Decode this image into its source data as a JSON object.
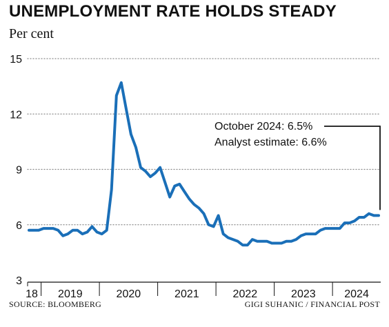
{
  "title": "UNEMPLOYMENT RATE HOLDS STEADY",
  "subtitle": "Per cent",
  "source": "SOURCE: BLOOMBERG",
  "credit": "GIGI SUHANIC / FINANCIAL POST",
  "colors": {
    "line": "#1a6fb8",
    "text": "#111111",
    "grid": "#999999"
  },
  "chart_data": {
    "type": "line",
    "title": "UNEMPLOYMENT RATE HOLDS STEADY",
    "ylabel": "Per cent",
    "ylim": [
      3,
      15
    ],
    "yticks": [
      3,
      6,
      9,
      12,
      15
    ],
    "grid": true,
    "x_tick_labels": [
      "18",
      "2019",
      "2020",
      "2021",
      "2022",
      "2023",
      "2024"
    ],
    "annotation": [
      "October 2024: 6.5%",
      "Analyst estimate: 6.6%"
    ],
    "series": [
      {
        "x": [
          "2018-10",
          "2018-11",
          "2018-12",
          "2019-01",
          "2019-02",
          "2019-03",
          "2019-04",
          "2019-05",
          "2019-06",
          "2019-07",
          "2019-08",
          "2019-09",
          "2019-10",
          "2019-11",
          "2019-12",
          "2020-01",
          "2020-02",
          "2020-03",
          "2020-04",
          "2020-05",
          "2020-06",
          "2020-07",
          "2020-08",
          "2020-09",
          "2020-10",
          "2020-11",
          "2020-12",
          "2021-01",
          "2021-02",
          "2021-03",
          "2021-04",
          "2021-05",
          "2021-06",
          "2021-07",
          "2021-08",
          "2021-09",
          "2021-10",
          "2021-11",
          "2021-12",
          "2022-01",
          "2022-02",
          "2022-03",
          "2022-04",
          "2022-05",
          "2022-06",
          "2022-07",
          "2022-08",
          "2022-09",
          "2022-10",
          "2022-11",
          "2022-12",
          "2023-01",
          "2023-02",
          "2023-03",
          "2023-04",
          "2023-05",
          "2023-06",
          "2023-07",
          "2023-08",
          "2023-09",
          "2023-10",
          "2023-11",
          "2023-12",
          "2024-01",
          "2024-02",
          "2024-03",
          "2024-04",
          "2024-05",
          "2024-06",
          "2024-07",
          "2024-08",
          "2024-09",
          "2024-10"
        ],
        "values": [
          5.7,
          5.7,
          5.7,
          5.8,
          5.8,
          5.8,
          5.7,
          5.4,
          5.5,
          5.7,
          5.7,
          5.5,
          5.6,
          5.9,
          5.6,
          5.5,
          5.7,
          7.9,
          13.0,
          13.7,
          12.3,
          10.9,
          10.2,
          9.1,
          8.9,
          8.6,
          8.8,
          9.1,
          8.3,
          7.5,
          8.1,
          8.2,
          7.8,
          7.4,
          7.1,
          6.9,
          6.6,
          6.0,
          5.9,
          6.5,
          5.5,
          5.3,
          5.2,
          5.1,
          4.9,
          4.9,
          5.2,
          5.1,
          5.1,
          5.1,
          5.0,
          5.0,
          5.0,
          5.1,
          5.1,
          5.2,
          5.4,
          5.5,
          5.5,
          5.5,
          5.7,
          5.8,
          5.8,
          5.8,
          5.8,
          6.1,
          6.1,
          6.2,
          6.4,
          6.4,
          6.6,
          6.5,
          6.5
        ]
      }
    ]
  }
}
